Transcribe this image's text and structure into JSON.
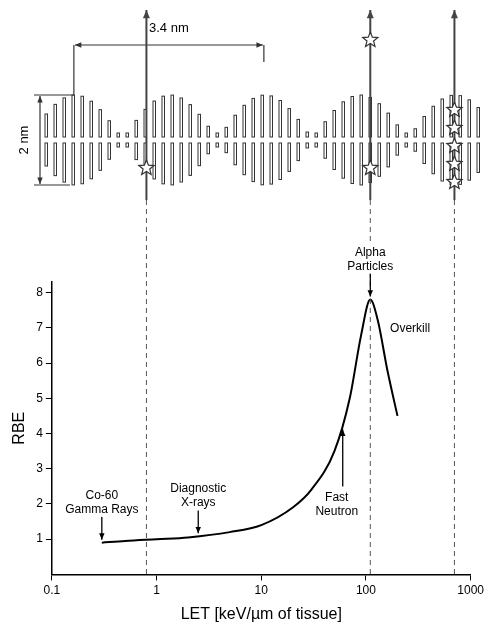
{
  "chart_data": {
    "type": "line",
    "x": [
      0.3,
      0.5,
      1,
      2,
      5,
      10,
      20,
      30,
      50,
      70,
      90,
      110,
      130,
      160,
      200
    ],
    "values": [
      0.9,
      0.95,
      1.0,
      1.05,
      1.2,
      1.4,
      1.9,
      2.4,
      3.5,
      5.0,
      6.8,
      7.8,
      7.2,
      5.8,
      4.5
    ],
    "color": "#000000",
    "marker": "none",
    "line_style": "solid",
    "xlabel": "LET [keV/µm of tissue]",
    "ylabel": "RBE",
    "log": "x",
    "xlim": [
      0.1,
      1000
    ],
    "xticks": [
      0.1,
      1,
      10,
      100,
      1000
    ],
    "ylim": [
      0,
      8.3
    ],
    "yticks": [
      1,
      2,
      3,
      4,
      5,
      6,
      7,
      8
    ],
    "grid": false,
    "annotations": [
      {
        "text": "Co-60\nGamma Rays",
        "x": 0.3,
        "y": 0.9,
        "arrow": "down"
      },
      {
        "text": "Diagnostic\nX-rays",
        "x": 2.5,
        "y": 1.08,
        "arrow": "down"
      },
      {
        "text": "Fast\nNeutron",
        "x": 60,
        "y": 4.2,
        "arrow": "up"
      },
      {
        "text": "Alpha\nParticles",
        "x": 110,
        "y": 7.8,
        "arrow": "down"
      },
      {
        "text": "Overkill",
        "x": 170,
        "y": 7.0
      }
    ],
    "tracks_x": [
      0.8,
      110,
      700
    ]
  },
  "diagram": {
    "width_label": "3.4 nm",
    "height_label": "2 nm"
  }
}
